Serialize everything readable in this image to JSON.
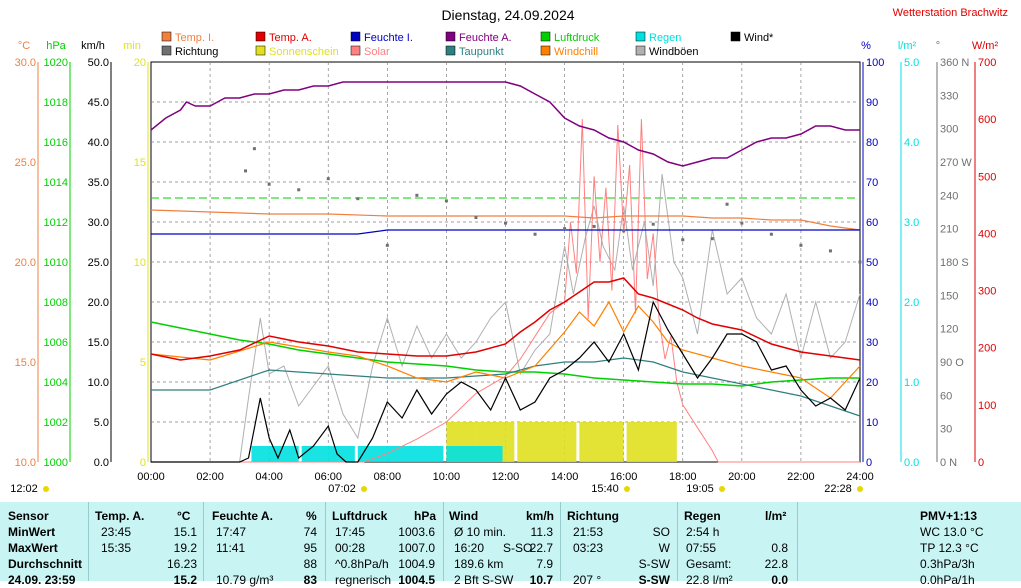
{
  "title": "Dienstag, 24.09.2024",
  "station": "Wetterstation Brachwitz",
  "colors": {
    "temp_in": "#f08040",
    "temp_out": "#e00000",
    "hum_in": "#0000c0",
    "hum_out": "#800080",
    "pressure": "#00d000",
    "rain": "#00e0e0",
    "wind": "#000000",
    "direction": "#707070",
    "sunshine": "#e0e020",
    "solar": "#ff8080",
    "dewpoint": "#2f7f7f",
    "windchill": "#ff7f00",
    "gust": "#b0b0b0",
    "stats_bg": "#c8f4f4"
  },
  "legend": [
    {
      "label": "Temp. I.",
      "color": "#f08040",
      "name": "legend-temp-in"
    },
    {
      "label": "Temp. A.",
      "color": "#e00000",
      "name": "legend-temp-out"
    },
    {
      "label": "Feuchte I.",
      "color": "#0000c0",
      "name": "legend-hum-in"
    },
    {
      "label": "Feuchte A.",
      "color": "#800080",
      "name": "legend-hum-out"
    },
    {
      "label": "Luftdruck",
      "color": "#00d000",
      "name": "legend-pressure"
    },
    {
      "label": "Regen",
      "color": "#00e0e0",
      "name": "legend-rain"
    },
    {
      "label": "Wind*",
      "color": "#000000",
      "name": "legend-wind"
    },
    {
      "label": "Richtung",
      "color": "#707070",
      "name": "legend-direction"
    },
    {
      "label": "Sonnenschein",
      "color": "#e0e020",
      "name": "legend-sunshine"
    },
    {
      "label": "Solar",
      "color": "#ff8080",
      "name": "legend-solar"
    },
    {
      "label": "Taupunkt",
      "color": "#2f7f7f",
      "name": "legend-dewpoint"
    },
    {
      "label": "Windchill",
      "color": "#ff7f00",
      "name": "legend-windchill"
    },
    {
      "label": "Windböen",
      "color": "#b0b0b0",
      "name": "legend-gust"
    }
  ],
  "axes": {
    "left": [
      {
        "unit": "°C",
        "color": "#f08040",
        "ticks": [
          "30.0",
          "25.0",
          "20.0",
          "15.0",
          "10.0"
        ],
        "range": [
          10,
          30
        ]
      },
      {
        "unit": "hPa",
        "color": "#00d000",
        "ticks": [
          "1020",
          "1018",
          "1016",
          "1014",
          "1012",
          "1010",
          "1008",
          "1006",
          "1004",
          "1002",
          "1000"
        ],
        "range": [
          1000,
          1020
        ]
      },
      {
        "unit": "km/h",
        "color": "#000000",
        "ticks": [
          "50.0",
          "45.0",
          "40.0",
          "35.0",
          "30.0",
          "25.0",
          "20.0",
          "15.0",
          "10.0",
          "5.0",
          "0.0"
        ],
        "range": [
          0,
          50
        ]
      },
      {
        "unit": "min",
        "color": "#e0e020",
        "ticks": [
          "20",
          "15",
          "10",
          "5",
          "0"
        ],
        "range": [
          0,
          20
        ]
      }
    ],
    "right": [
      {
        "unit": "%",
        "color": "#0000c0",
        "ticks": [
          "100",
          "90",
          "80",
          "70",
          "60",
          "50",
          "40",
          "30",
          "20",
          "10",
          "0"
        ],
        "range": [
          0,
          100
        ]
      },
      {
        "unit": "l/m²",
        "color": "#00e0e0",
        "ticks": [
          "5.0",
          "4.0",
          "3.0",
          "2.0",
          "1.0",
          "0.0"
        ],
        "range": [
          0,
          5
        ]
      },
      {
        "unit": "°",
        "color": "#707070",
        "ticks": [
          "360 N",
          "330",
          "300",
          "270 W",
          "240",
          "210",
          "180 S",
          "150",
          "120",
          "90 O",
          "60",
          "30",
          "0 N"
        ],
        "range": [
          0,
          360
        ]
      },
      {
        "unit": "W/m²",
        "color": "#e00000",
        "ticks": [
          "700",
          "600",
          "500",
          "400",
          "300",
          "200",
          "100",
          "0"
        ],
        "range": [
          0,
          700
        ]
      }
    ],
    "x_ticks": [
      "00:00",
      "02:00",
      "04:00",
      "06:00",
      "08:00",
      "10:00",
      "12:00",
      "14:00",
      "16:00",
      "18:00",
      "20:00",
      "22:00",
      "24:00"
    ]
  },
  "sun_marks": [
    {
      "text": "12:02",
      "symbol": "sun"
    },
    {
      "text": "07:02",
      "symbol": "sunrise"
    },
    {
      "text": "15:40",
      "symbol": "moon-down"
    },
    {
      "text": "19:05",
      "symbol": "sunset"
    },
    {
      "text": "22:28",
      "symbol": "moon-up"
    }
  ],
  "chart_data": {
    "type": "line",
    "x_range": [
      "00:00",
      "24:00"
    ],
    "hum_out": {
      "x": [
        0,
        0.5,
        1,
        1.2,
        1.5,
        2,
        2.5,
        3,
        3.5,
        4,
        4.5,
        5,
        5.5,
        6,
        6.5,
        7,
        8,
        9,
        10,
        11,
        12,
        12.5,
        13,
        13.5,
        14,
        14.5,
        15,
        15.5,
        16,
        16.5,
        17,
        17.5,
        18,
        18.5,
        19,
        19.5,
        20,
        20.5,
        21,
        21.5,
        22,
        22.5,
        23,
        23.5,
        24
      ],
      "y": [
        83,
        86,
        88,
        90,
        89,
        89,
        91,
        91,
        92,
        92,
        93,
        93,
        94,
        94,
        95,
        95,
        95,
        95,
        95,
        95,
        95,
        94,
        92,
        90,
        86,
        84,
        83,
        81,
        80,
        78,
        77,
        75,
        74,
        75,
        76,
        76,
        78,
        80,
        81,
        81,
        82,
        84,
        84,
        83,
        83
      ]
    },
    "hum_in": {
      "x": [
        0,
        3,
        3.5,
        4,
        5,
        6,
        7,
        8,
        9,
        10,
        11,
        12,
        14,
        16,
        18,
        20,
        22,
        24
      ],
      "y": [
        57,
        57,
        57,
        57,
        57,
        57,
        57,
        58,
        58,
        58,
        58,
        58,
        58,
        58,
        58,
        58,
        58,
        58
      ]
    },
    "temp_in": {
      "x": [
        0,
        2,
        4,
        6,
        8,
        10,
        12,
        14,
        15,
        16,
        17,
        18,
        19,
        20,
        21,
        22,
        23,
        24
      ],
      "y": [
        22.6,
        22.5,
        22.4,
        22.4,
        22.3,
        22.3,
        22.3,
        22.3,
        22.2,
        22.3,
        22.3,
        22.3,
        22.2,
        22.2,
        22.1,
        22.1,
        21.8,
        21.6
      ]
    },
    "temp_out": {
      "x": [
        0,
        1,
        2,
        3,
        4,
        5,
        6,
        7,
        8,
        9,
        10,
        11,
        12,
        12.5,
        13,
        13.5,
        14,
        14.5,
        15,
        15.5,
        16,
        16.5,
        17,
        17.5,
        18,
        18.5,
        19,
        20,
        21,
        22,
        23,
        24
      ],
      "y": [
        15.4,
        15.1,
        15.3,
        15.6,
        16.3,
        16.0,
        15.8,
        15.5,
        15.4,
        15.3,
        15.3,
        15.5,
        15.9,
        16.5,
        17.0,
        17.6,
        18.0,
        18.5,
        19.0,
        19.0,
        19.2,
        18.4,
        18.2,
        17.9,
        17.6,
        17.2,
        16.9,
        16.6,
        15.9,
        15.5,
        15.3,
        15.1
      ]
    },
    "dewpoint": {
      "x": [
        0,
        2,
        4,
        6,
        8,
        10,
        12,
        13,
        14,
        15,
        16,
        17,
        18,
        19,
        20,
        21,
        22,
        23,
        24
      ],
      "y": [
        13.6,
        13.6,
        14.6,
        14.4,
        14.2,
        14.2,
        14.4,
        14.8,
        15.0,
        15.0,
        15.2,
        15.0,
        14.5,
        14.2,
        13.9,
        13.6,
        13.3,
        12.8,
        12.3
      ]
    },
    "windchill": {
      "x": [
        0,
        2,
        4,
        6,
        7,
        8,
        9,
        10,
        11,
        12,
        13,
        14,
        14.5,
        15,
        15.5,
        16,
        16.5,
        17,
        17.5,
        18,
        19,
        20,
        21,
        22,
        23,
        24
      ],
      "y": [
        15.4,
        15.1,
        16.0,
        15.5,
        15.3,
        14.8,
        14.2,
        14.0,
        14.5,
        14.2,
        14.8,
        16.5,
        17.5,
        16.8,
        18.0,
        16.5,
        17.8,
        17.0,
        16.0,
        15.6,
        15.2,
        14.8,
        14.5,
        14.2,
        13.2,
        14.8
      ]
    },
    "pressure": {
      "x": [
        0,
        1,
        2,
        3,
        4,
        5,
        6,
        7,
        8,
        9,
        10,
        11,
        12,
        13,
        14,
        15,
        16,
        17,
        18,
        19,
        20,
        21,
        22,
        23,
        24
      ],
      "y": [
        1007.0,
        1006.7,
        1006.4,
        1006.1,
        1005.9,
        1005.6,
        1005.4,
        1005.2,
        1005.0,
        1004.9,
        1004.8,
        1004.6,
        1004.5,
        1004.5,
        1004.4,
        1004.2,
        1004.1,
        1004.0,
        1003.9,
        1003.9,
        1003.8,
        1004.0,
        1004.1,
        1004.2,
        1004.2
      ]
    },
    "wind": {
      "x": [
        0,
        3,
        3.3,
        3.7,
        4,
        4.3,
        4.7,
        5,
        5.5,
        6,
        6.3,
        6.6,
        7,
        7.5,
        8,
        8.5,
        9,
        9.5,
        10,
        10.5,
        11,
        11.5,
        12,
        12.5,
        13,
        13.5,
        14,
        14.5,
        15,
        15.5,
        16,
        16.5,
        17,
        17.5,
        18,
        18.5,
        19,
        19.5,
        20,
        20.5,
        21,
        21.5,
        22,
        22.5,
        23,
        23.5,
        24
      ],
      "y": [
        0,
        0,
        0.5,
        8.0,
        3.0,
        0.5,
        4.0,
        0.5,
        2.0,
        4.5,
        1.0,
        0,
        0,
        3.0,
        7.5,
        5.5,
        9.0,
        6.0,
        8.5,
        10.0,
        9.0,
        6.5,
        10.5,
        6.5,
        7.5,
        10.5,
        11.5,
        13.0,
        15.0,
        12.5,
        16.0,
        11.5,
        20.0,
        16.5,
        13.5,
        10.5,
        13.0,
        16.0,
        16.0,
        15.0,
        11.5,
        12.0,
        9.0,
        7.0,
        8.0,
        6.5,
        10.5
      ]
    },
    "gust": {
      "x": [
        0,
        3,
        3.3,
        3.7,
        4,
        4.5,
        5,
        6,
        6.5,
        7,
        7.5,
        8,
        8.5,
        9,
        9.5,
        10,
        10.5,
        11,
        11.5,
        12,
        12.5,
        13,
        13.5,
        14,
        14.3,
        14.7,
        15,
        15.3,
        15.7,
        16,
        16.3,
        16.7,
        17,
        17.3,
        17.7,
        18,
        18.5,
        19,
        19.5,
        20,
        20.5,
        21,
        21.5,
        22,
        22.5,
        23,
        23.5,
        24
      ],
      "y": [
        0,
        0,
        8,
        18,
        11,
        12,
        7,
        12,
        6,
        3,
        12,
        18,
        12,
        17,
        13,
        16,
        13,
        15,
        18,
        20,
        11,
        14,
        16,
        27,
        21,
        28,
        32,
        27,
        24,
        32,
        24,
        30,
        22,
        36,
        25,
        23,
        16,
        29,
        21,
        23,
        18,
        16,
        21,
        13,
        20,
        13,
        15,
        21
      ]
    },
    "solar": {
      "x": [
        0,
        7.2,
        8,
        9,
        10,
        11,
        12,
        12.5,
        13,
        13.5,
        14,
        14.2,
        14.4,
        14.6,
        14.8,
        15,
        15.2,
        15.4,
        15.6,
        15.8,
        16,
        16.2,
        16.4,
        16.6,
        16.8,
        17,
        17.2,
        17.4,
        17.6,
        17.8,
        18,
        18.5,
        19,
        19.2,
        24
      ],
      "y": [
        0,
        0,
        15,
        40,
        70,
        120,
        150,
        180,
        220,
        260,
        280,
        420,
        330,
        600,
        250,
        500,
        350,
        480,
        300,
        590,
        400,
        520,
        260,
        600,
        320,
        400,
        250,
        180,
        220,
        140,
        100,
        60,
        20,
        0,
        0
      ]
    },
    "direction": {
      "x": [
        3.2,
        3.5,
        4,
        5,
        6,
        7,
        8,
        9,
        10,
        11,
        12,
        13,
        14,
        15,
        16,
        17,
        18,
        19,
        19.5,
        20,
        21,
        22,
        23,
        24
      ],
      "y": [
        262,
        282,
        250,
        245,
        255,
        237,
        195,
        240,
        235,
        220,
        215,
        205,
        210,
        212,
        208,
        214,
        200,
        201,
        232,
        215,
        205,
        195,
        190,
        180
      ]
    },
    "sunshine": {
      "segments": [
        [
          10.0,
          11.0
        ],
        [
          11.0,
          12.3
        ],
        [
          12.4,
          14.4
        ],
        [
          14.5,
          16.0
        ],
        [
          16.1,
          17.8
        ]
      ]
    },
    "rain": {
      "segments": [
        [
          3.4,
          5.0
        ],
        [
          5.1,
          6.9
        ],
        [
          7.0,
          9.9
        ],
        [
          10.0,
          11.9
        ]
      ]
    }
  },
  "stats": {
    "header": {
      "sensor": "Sensor",
      "temp": "Temp. A.",
      "temp_unit": "°C",
      "hum": "Feuchte A.",
      "hum_unit": "%",
      "press": "Luftdruck",
      "press_unit": "hPa",
      "wind": "Wind",
      "wind_unit": "km/h",
      "dir": "Richtung",
      "rain": "Regen",
      "rain_unit": "l/m²",
      "pmv": "PMV+1:13"
    },
    "rows": [
      {
        "label": "MinWert",
        "t_time": "23:45",
        "t_val": "15.1",
        "h_time": "17:47",
        "h_val": "74",
        "p_time": "17:45",
        "p_val": "1003.6",
        "w_a": "Ø 10 min.",
        "w_b": "",
        "w_val": "11.3",
        "d_time": "21:53",
        "d_val": "SO",
        "r_a": "2:54 h",
        "r_val": "",
        "pmv": "WC 13.0 °C"
      },
      {
        "label": "MaxWert",
        "t_time": "15:35",
        "t_val": "19.2",
        "h_time": "11:41",
        "h_val": "95",
        "p_time": "00:28",
        "p_val": "1007.0",
        "w_a": "16:20",
        "w_b": "S-SO",
        "w_val": "22.7",
        "d_time": "03:23",
        "d_val": "W",
        "r_a": "07:55",
        "r_val": "0.8",
        "pmv": "TP 12.3 °C"
      },
      {
        "label": "Durchschnitt",
        "t_time": "",
        "t_val": "16.23",
        "h_time": "",
        "h_val": "88",
        "p_time": "^0.8hPa/h",
        "p_val": "1004.9",
        "w_a": "189.6 km",
        "w_b": "",
        "w_val": "7.9",
        "d_time": "",
        "d_val": "S-SW",
        "r_a": "Gesamt:",
        "r_val": "22.8",
        "pmv": "0.3hPa/3h"
      },
      {
        "label": "24.09. 23:59",
        "t_time": "",
        "t_val": "15.2",
        "h_time": "10.79 g/m³",
        "h_val": "83",
        "p_time": "regnerisch",
        "p_val": "1004.5",
        "w_a": "2 Bft S-SW",
        "w_b": "",
        "w_val": "10.7",
        "d_time": "207 °",
        "d_val": "S-SW",
        "r_a": "22.8 l/m²",
        "r_val": "0.0",
        "pmv": "0.0hPa/1h"
      }
    ]
  }
}
